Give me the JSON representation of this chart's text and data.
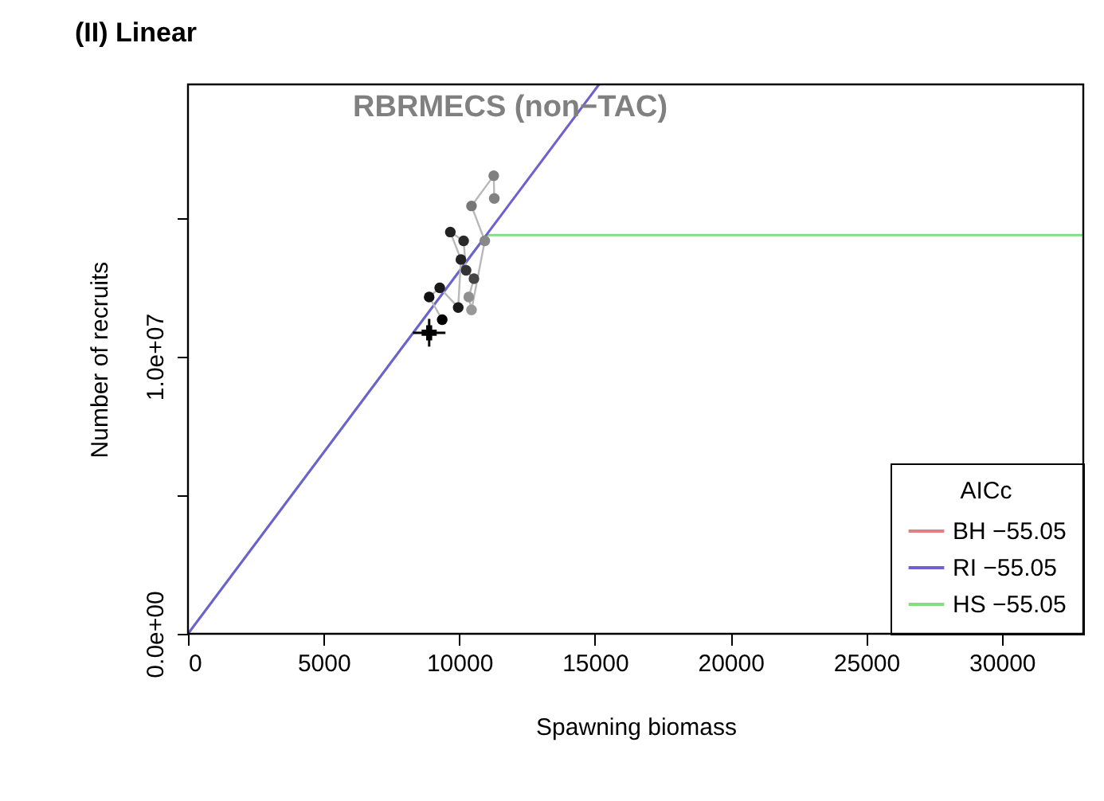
{
  "chart_data": {
    "type": "line",
    "title": "(II) Linear",
    "xlabel": "Spawning biomass",
    "ylabel": "Number of recruits",
    "legend_title": "AICc",
    "annotations": [
      "RBRMECS (non−TAC)"
    ],
    "xlim": [
      0,
      33000
    ],
    "ylim": [
      0,
      19800000
    ],
    "xticks": [
      0,
      5000,
      10000,
      15000,
      20000,
      25000,
      30000
    ],
    "yticks": [
      {
        "value": 0,
        "label": "0.0e+00"
      },
      {
        "value": 5000000,
        "label": null
      },
      {
        "value": 10000000,
        "label": "1.0e+07"
      },
      {
        "value": 15000000,
        "label": null
      }
    ],
    "legend": "bottom right",
    "grid": false,
    "line_style": "solid",
    "series": [
      {
        "name": "BH −55.05",
        "color": "#e08080",
        "marker": "none"
      },
      {
        "name": "RI −55.05",
        "color": "#6f5fd0",
        "marker": "none",
        "x": [
          0,
          15150
        ],
        "values": [
          0,
          19800000
        ]
      },
      {
        "name": "HS −55.05",
        "color": "#80e080",
        "marker": "none",
        "x": [
          0,
          11000,
          33000
        ],
        "values": [
          0,
          14370000,
          14370000
        ]
      },
      {
        "color": "#b8b8b8",
        "marker": "circle",
        "x": [
          9370,
          8890,
          9280,
          9960,
          10060,
          9670,
          10160,
          10250,
          10540,
          10350,
          10450,
          10940,
          10450,
          11270,
          11290
        ],
        "values": [
          11320000,
          12140000,
          12470000,
          11760000,
          13490000,
          14480000,
          14160000,
          13100000,
          12800000,
          12140000,
          11670000,
          14160000,
          15420000,
          16510000,
          15690000
        ],
        "colors": [
          "#000000",
          "#111111",
          "#1a1a1a",
          "#1a1a1a",
          "#222222",
          "#222222",
          "#2a2a2a",
          "#333333",
          "#444444",
          "#909090",
          "#999999",
          "#888888",
          "#777777",
          "#808080",
          "#808080"
        ]
      },
      {
        "type": "scatter",
        "color": "#000000",
        "marker": "cross",
        "x": [
          8890
        ],
        "values": [
          10850000
        ],
        "errors": [
          500000
        ],
        "xerrors": [
          600
        ]
      }
    ]
  }
}
